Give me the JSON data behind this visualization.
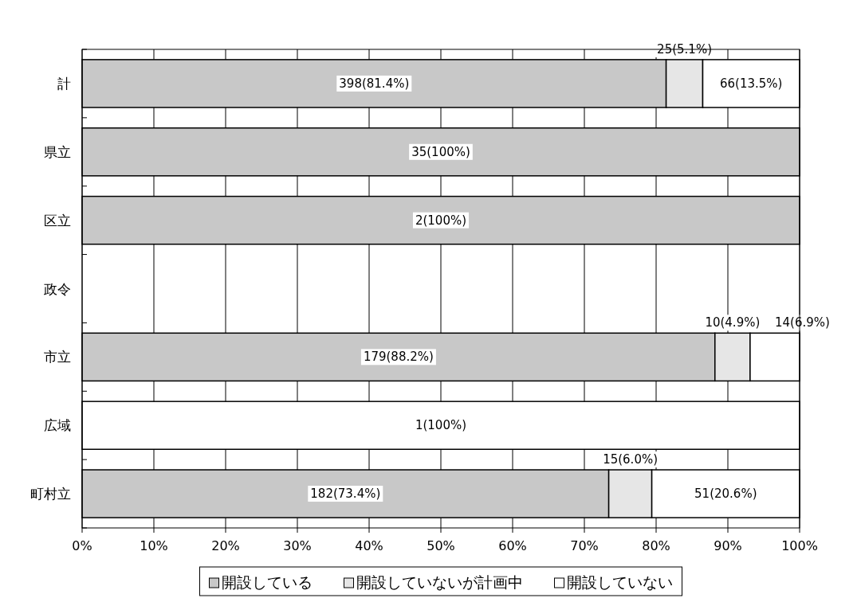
{
  "chart_data": {
    "type": "bar",
    "orientation": "horizontal",
    "stacked": true,
    "categories": [
      "計",
      "県立",
      "区立",
      "政令",
      "市立",
      "広域",
      "町村立"
    ],
    "series": [
      {
        "name": "開設している",
        "color": "#c8c8c8",
        "values": [
          81.4,
          100,
          100,
          null,
          88.2,
          0,
          73.4
        ],
        "value_labels": [
          "398(81.4%)",
          "35(100%)",
          "2(100%)",
          null,
          "179(88.2%)",
          null,
          "182(73.4%)"
        ]
      },
      {
        "name": "開設していないが計画中",
        "color": "#e6e6e6",
        "values": [
          5.1,
          0,
          0,
          null,
          4.9,
          0,
          6.0
        ],
        "value_labels": [
          "25(5.1%)",
          null,
          null,
          null,
          "10(4.9%)",
          null,
          "15(6.0%)"
        ]
      },
      {
        "name": "開設していない",
        "color": "#ffffff",
        "values": [
          13.5,
          0,
          0,
          null,
          6.9,
          100,
          20.6
        ],
        "value_labels": [
          "66(13.5%)",
          null,
          null,
          null,
          "14(6.9%)",
          "1(100%)",
          "51(20.6%)"
        ]
      }
    ],
    "xlim": [
      0,
      100
    ],
    "xticks": [
      {
        "value": 0,
        "label": "0%"
      },
      {
        "value": 10,
        "label": "10%"
      },
      {
        "value": 20,
        "label": "20%"
      },
      {
        "value": 30,
        "label": "30%"
      },
      {
        "value": 40,
        "label": "40%"
      },
      {
        "value": 50,
        "label": "50%"
      },
      {
        "value": 60,
        "label": "60%"
      },
      {
        "value": 70,
        "label": "70%"
      },
      {
        "value": 80,
        "label": "80%"
      },
      {
        "value": 90,
        "label": "90%"
      },
      {
        "value": 100,
        "label": "100%"
      }
    ],
    "grid": "x",
    "legend": "bottom"
  }
}
